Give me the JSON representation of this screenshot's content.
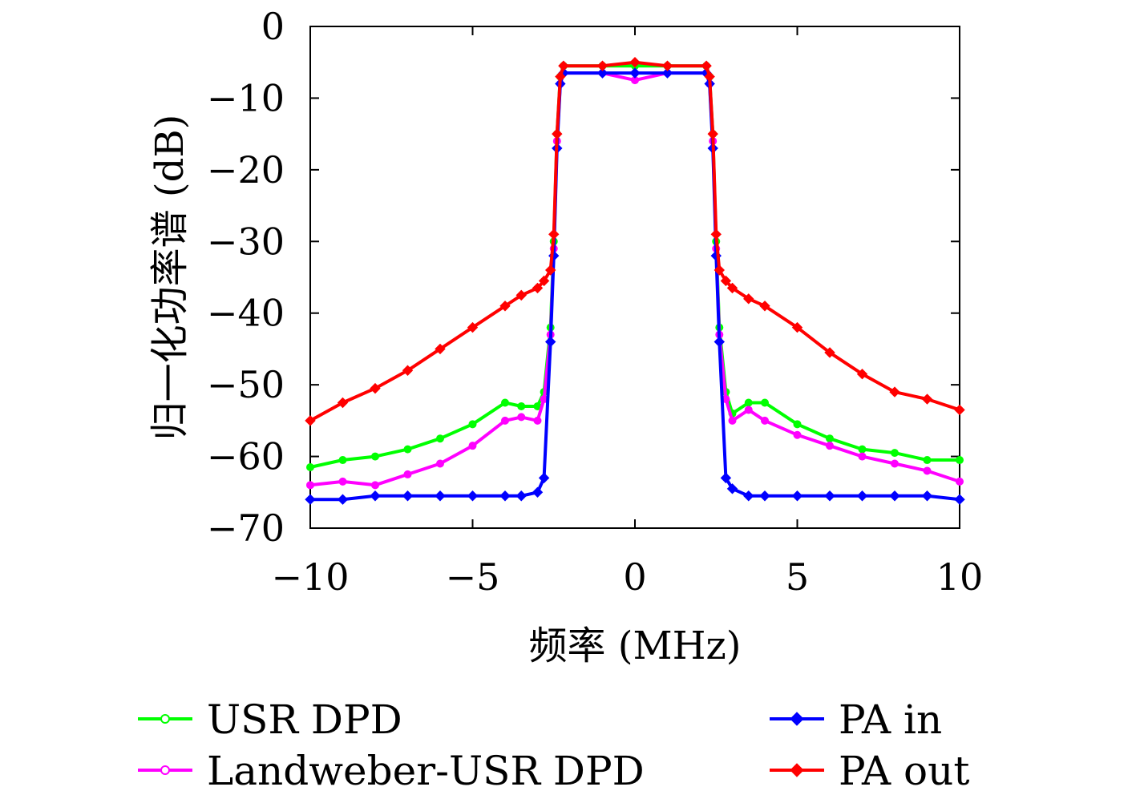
{
  "chart_data": {
    "type": "line",
    "title": "",
    "xlabel": "频率 (MHz)",
    "ylabel": "归一化功率谱 (dB)",
    "xlim": [
      -10,
      10
    ],
    "ylim": [
      -70,
      0
    ],
    "xticks": [
      -10,
      -5,
      0,
      5,
      10
    ],
    "xtick_labels": [
      "−10",
      "−5",
      "0",
      "5",
      "10"
    ],
    "yticks": [
      0,
      -10,
      -20,
      -30,
      -40,
      -50,
      -60,
      -70
    ],
    "ytick_labels": [
      "0",
      "−10",
      "−20",
      "−30",
      "−40",
      "−50",
      "−60",
      "−70"
    ],
    "grid": false,
    "legend_position": "below",
    "x": [
      -10,
      -9,
      -8,
      -7,
      -6,
      -5,
      -4,
      -3.5,
      -3,
      -2.8,
      -2.6,
      -2.5,
      -2.4,
      -2.3,
      -2.2,
      -1,
      0,
      1,
      2.2,
      2.3,
      2.4,
      2.5,
      2.6,
      2.8,
      3,
      3.5,
      4,
      5,
      6,
      7,
      8,
      9,
      10
    ],
    "series": [
      {
        "name": "USR DPD",
        "color": "#00ff00",
        "marker": "circle",
        "values": [
          -61.5,
          -60.5,
          -60,
          -59,
          -57.5,
          -55.5,
          -52.5,
          -53,
          -53,
          -51,
          -42,
          -30,
          -15,
          -7,
          -5.5,
          -5.5,
          -5.5,
          -5.5,
          -5.5,
          -7,
          -15,
          -30,
          -42,
          -51,
          -54,
          -52.5,
          -52.5,
          -55.5,
          -57.5,
          -59,
          -59.5,
          -60.5,
          -60.5
        ]
      },
      {
        "name": "Landweber-USR DPD",
        "color": "#ff00ff",
        "marker": "circle",
        "values": [
          -64,
          -63.5,
          -64,
          -62.5,
          -61,
          -58.5,
          -55,
          -54.5,
          -55,
          -52,
          -43,
          -31,
          -16,
          -8,
          -6.5,
          -6.5,
          -7.5,
          -6.5,
          -6.5,
          -8,
          -16,
          -31,
          -43,
          -52,
          -55,
          -53.5,
          -55,
          -57,
          -58.5,
          -60,
          -61,
          -62,
          -63.5
        ]
      },
      {
        "name": "PA in",
        "color": "#0000ff",
        "marker": "diamond",
        "values": [
          -66,
          -66,
          -65.5,
          -65.5,
          -65.5,
          -65.5,
          -65.5,
          -65.5,
          -65,
          -63,
          -44,
          -32,
          -17,
          -8,
          -6.5,
          -6.5,
          -6.5,
          -6.5,
          -6.5,
          -8,
          -17,
          -32,
          -44,
          -63,
          -64.5,
          -65.5,
          -65.5,
          -65.5,
          -65.5,
          -65.5,
          -65.5,
          -65.5,
          -66
        ]
      },
      {
        "name": "PA out",
        "color": "#ff0000",
        "marker": "diamond",
        "values": [
          -55,
          -52.5,
          -50.5,
          -48,
          -45,
          -42,
          -39,
          -37.5,
          -36.5,
          -35.5,
          -34,
          -29,
          -15,
          -7,
          -5.5,
          -5.5,
          -5,
          -5.5,
          -5.5,
          -7,
          -15,
          -29,
          -34,
          -35.5,
          -36.5,
          -38,
          -39,
          -42,
          -45.5,
          -48.5,
          -51,
          -52,
          -53.5
        ]
      }
    ]
  }
}
